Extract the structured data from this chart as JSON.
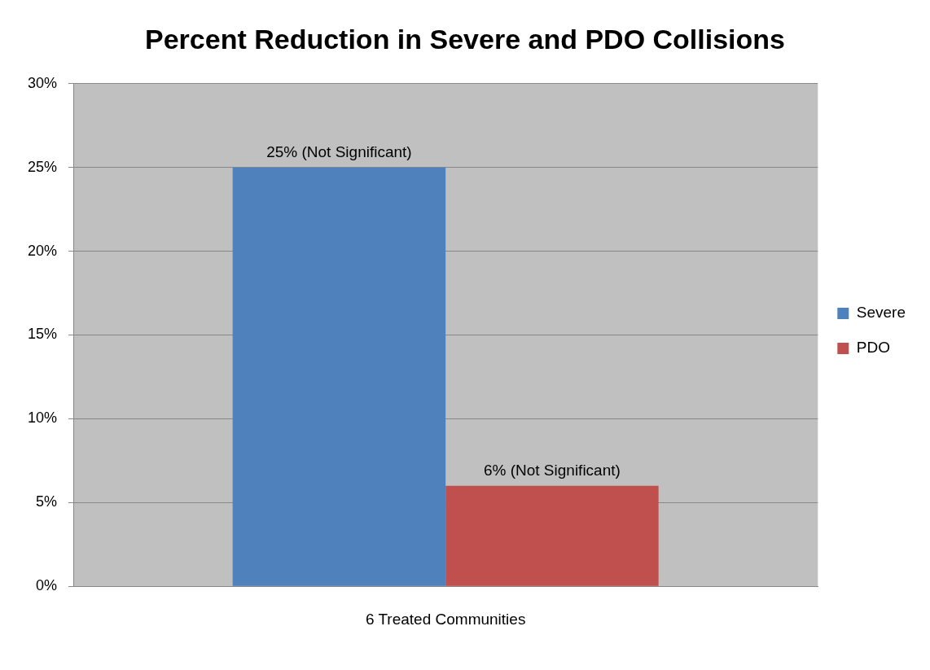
{
  "chart_data": {
    "type": "bar",
    "title": "Percent Reduction in Severe and PDO Collisions",
    "categories": [
      "6 Treated Communities"
    ],
    "series": [
      {
        "name": "Severe",
        "color": "#4f81bd",
        "values": [
          25
        ],
        "value_labels": [
          "25% (Not Significant)"
        ]
      },
      {
        "name": "PDO",
        "color": "#c0504d",
        "values": [
          6
        ],
        "value_labels": [
          "6% (Not Significant)"
        ]
      }
    ],
    "ylim": [
      0,
      30
    ],
    "yticks": [
      {
        "value": 0,
        "label": "0%"
      },
      {
        "value": 5,
        "label": "5%"
      },
      {
        "value": 10,
        "label": "10%"
      },
      {
        "value": 15,
        "label": "15%"
      },
      {
        "value": 20,
        "label": "20%"
      },
      {
        "value": 25,
        "label": "25%"
      },
      {
        "value": 30,
        "label": "30%"
      }
    ],
    "grid": "y",
    "legend": "right"
  }
}
